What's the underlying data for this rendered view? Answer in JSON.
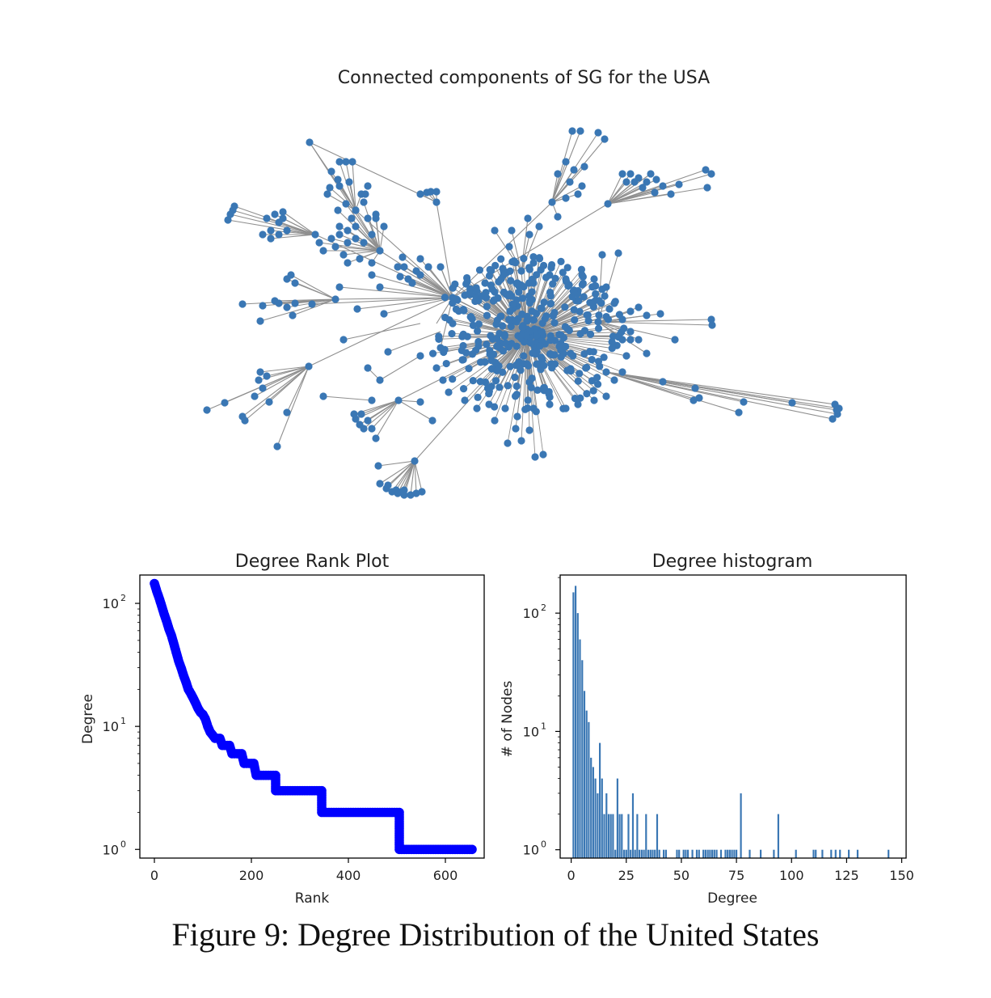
{
  "figure": {
    "caption": "Figure 9: Degree Distribution of the United States"
  },
  "colors": {
    "node": "#3a77b4",
    "edge": "#8f8f8f",
    "rank_line": "#0000ff",
    "histogram_bar": "#3a77b4"
  },
  "network": {
    "title": "Connected components of SG for the USA"
  },
  "chart_data": [
    {
      "type": "line",
      "title": "Degree Rank Plot",
      "xlabel": "Rank",
      "ylabel": "Degree",
      "yscale": "log",
      "xlim": [
        -30,
        680
      ],
      "ylim": [
        0.85,
        170
      ],
      "x_ticks": [
        {
          "value": 0,
          "label": "0"
        },
        {
          "value": 200,
          "label": "200"
        },
        {
          "value": 400,
          "label": "400"
        },
        {
          "value": 600,
          "label": "600"
        }
      ],
      "y_ticks": [
        {
          "value": 1,
          "label": "10",
          "exp": "0"
        },
        {
          "value": 10,
          "label": "10",
          "exp": "1"
        },
        {
          "value": 100,
          "label": "10",
          "exp": "2"
        }
      ],
      "marker": "o",
      "series": [
        {
          "points": [
            [
              0,
              145
            ],
            [
              5,
              125
            ],
            [
              10,
              110
            ],
            [
              15,
              95
            ],
            [
              20,
              82
            ],
            [
              25,
              72
            ],
            [
              30,
              62
            ],
            [
              35,
              55
            ],
            [
              40,
              47
            ],
            [
              45,
              40
            ],
            [
              50,
              34
            ],
            [
              55,
              30
            ],
            [
              60,
              26
            ],
            [
              65,
              23
            ],
            [
              70,
              20
            ],
            [
              75,
              18.5
            ],
            [
              80,
              17
            ],
            [
              85,
              15.5
            ],
            [
              90,
              14
            ],
            [
              95,
              13
            ],
            [
              100,
              12.5
            ],
            [
              105,
              11.5
            ],
            [
              110,
              10
            ],
            [
              115,
              9
            ],
            [
              120,
              8.5
            ],
            [
              125,
              8
            ],
            [
              135,
              8
            ],
            [
              140,
              7
            ],
            [
              155,
              7
            ],
            [
              160,
              6
            ],
            [
              180,
              6
            ],
            [
              185,
              5
            ],
            [
              205,
              5
            ],
            [
              210,
              4
            ],
            [
              250,
              4
            ],
            [
              250,
              3
            ],
            [
              345,
              3
            ],
            [
              345,
              2
            ],
            [
              505,
              2
            ],
            [
              505,
              1
            ],
            [
              655,
              1
            ]
          ]
        }
      ]
    },
    {
      "type": "bar",
      "title": "Degree histogram",
      "xlabel": "Degree",
      "ylabel": "# of Nodes",
      "yscale": "log",
      "xlim": [
        -5,
        152
      ],
      "ylim": [
        0.85,
        210
      ],
      "x_ticks": [
        {
          "value": 0,
          "label": "0"
        },
        {
          "value": 25,
          "label": "25"
        },
        {
          "value": 50,
          "label": "50"
        },
        {
          "value": 75,
          "label": "75"
        },
        {
          "value": 100,
          "label": "100"
        },
        {
          "value": 125,
          "label": "125"
        },
        {
          "value": 150,
          "label": "150"
        }
      ],
      "y_ticks": [
        {
          "value": 1,
          "label": "10",
          "exp": "0"
        },
        {
          "value": 10,
          "label": "10",
          "exp": "1"
        },
        {
          "value": 100,
          "label": "10",
          "exp": "2"
        }
      ],
      "degrees": [
        1,
        2,
        3,
        4,
        5,
        6,
        7,
        8,
        9,
        10,
        11,
        12,
        13,
        14,
        15,
        16,
        17,
        18,
        19,
        20,
        21,
        22,
        23,
        24,
        25,
        26,
        27,
        28,
        29,
        30,
        31,
        32,
        33,
        34,
        35,
        36,
        37,
        38,
        39,
        40,
        42,
        43,
        48,
        49,
        51,
        52,
        53,
        55,
        57,
        58,
        60,
        61,
        62,
        63,
        64,
        65,
        66,
        68,
        70,
        71,
        72,
        73,
        74,
        75,
        77,
        81,
        86,
        92,
        94,
        102,
        110,
        111,
        114,
        118,
        120,
        122,
        126,
        130,
        144
      ],
      "counts": [
        150,
        170,
        100,
        60,
        40,
        22,
        15,
        12,
        6,
        5,
        4,
        3,
        8,
        4,
        2,
        3,
        2,
        2,
        2,
        1,
        4,
        2,
        2,
        1,
        1,
        2,
        1,
        3,
        1,
        2,
        1,
        1,
        1,
        2,
        1,
        1,
        1,
        1,
        2,
        1,
        1,
        1,
        1,
        1,
        1,
        1,
        1,
        1,
        1,
        1,
        1,
        1,
        1,
        1,
        1,
        1,
        1,
        1,
        1,
        1,
        1,
        1,
        1,
        1,
        3,
        1,
        1,
        1,
        2,
        1,
        1,
        1,
        1,
        1,
        1,
        1,
        1,
        1,
        1
      ]
    }
  ]
}
